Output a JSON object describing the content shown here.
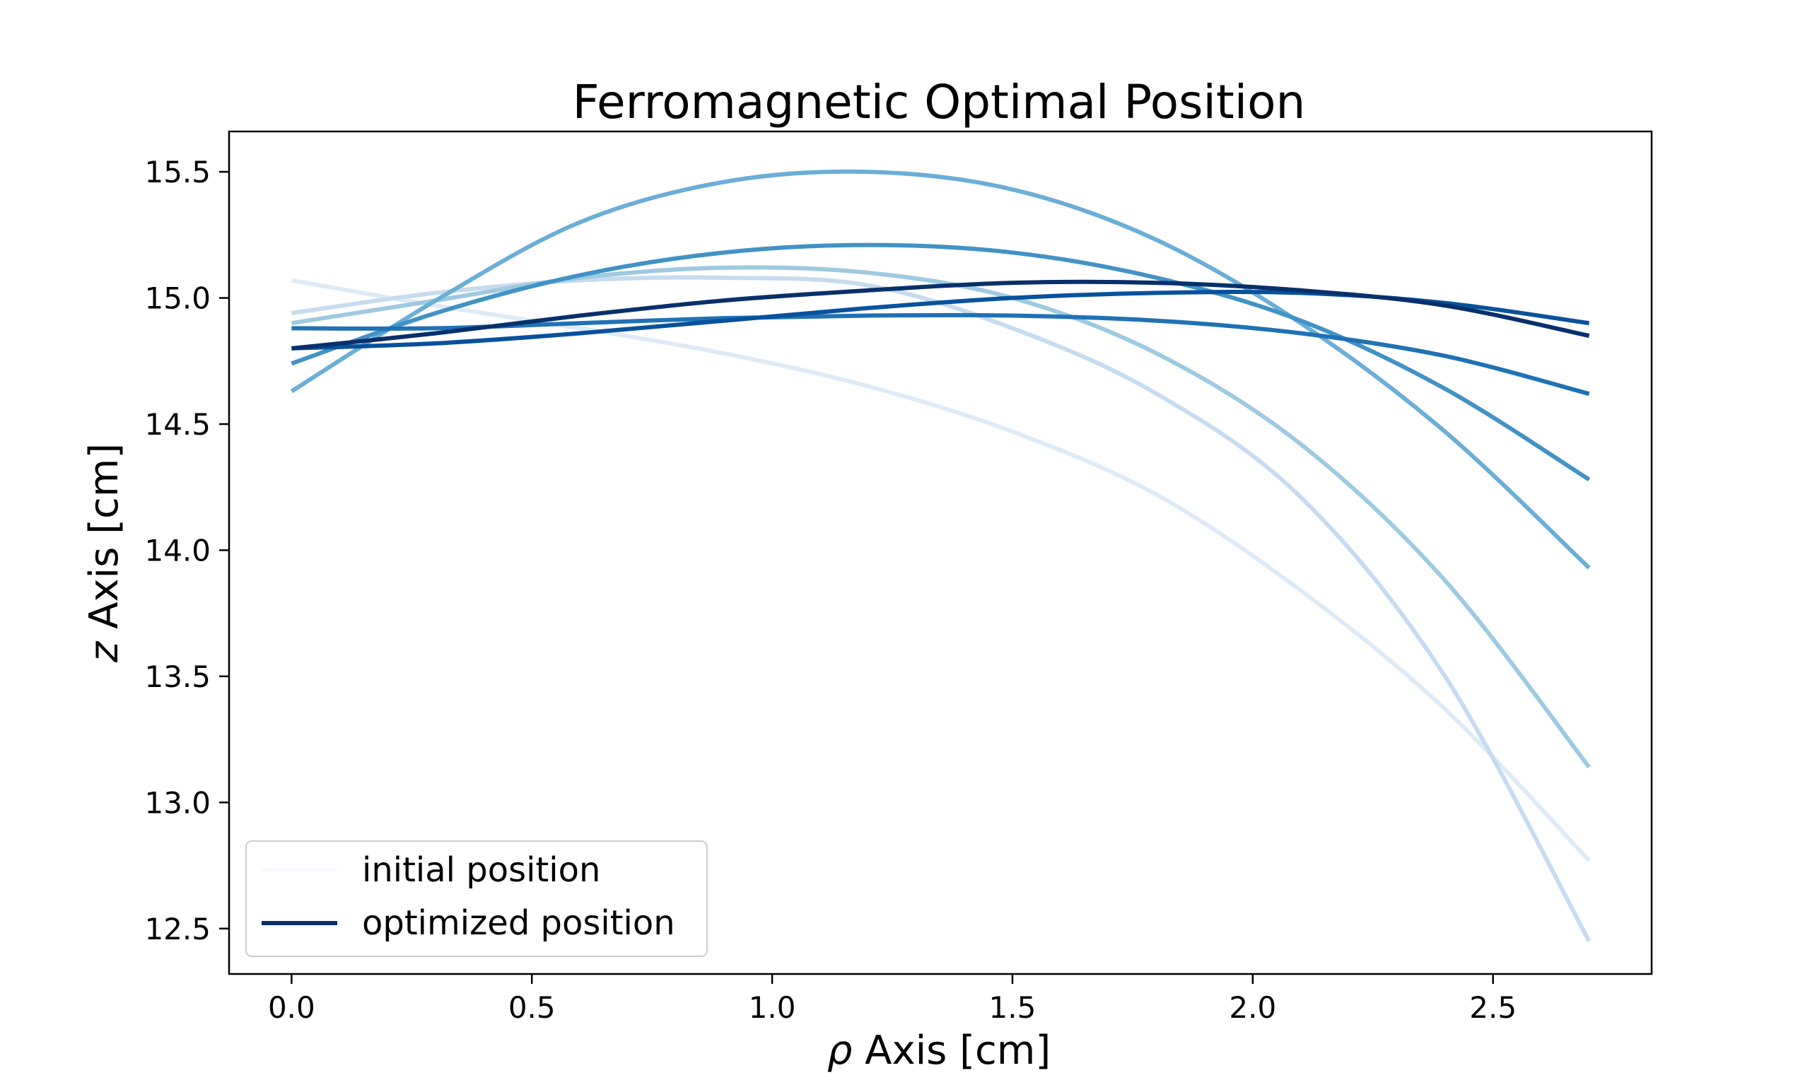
{
  "chart_data": {
    "type": "line",
    "title": "Ferromagnetic Optimal Position",
    "xlabel_symbol": "ρ",
    "xlabel_text": " Axis [cm]",
    "ylabel_symbol": "z",
    "ylabel_text": " Axis [cm]",
    "xlim": [
      -0.13,
      2.83
    ],
    "ylim": [
      12.32,
      15.66
    ],
    "xticks": [
      0.0,
      0.5,
      1.0,
      1.5,
      2.0,
      2.5
    ],
    "xtick_labels": [
      "0.0",
      "0.5",
      "1.0",
      "1.5",
      "2.0",
      "2.5"
    ],
    "yticks": [
      12.5,
      13.0,
      13.5,
      14.0,
      14.5,
      15.0,
      15.5
    ],
    "ytick_labels": [
      "12.5",
      "13.0",
      "13.5",
      "14.0",
      "14.5",
      "15.0",
      "15.5"
    ],
    "grid": false,
    "legend": {
      "placement": "lower-left",
      "entries": [
        {
          "label": "initial position",
          "color": "#f7fbff"
        },
        {
          "label": "optimized position",
          "color": "#08306b"
        }
      ]
    },
    "series": [
      {
        "color": "#deebf7",
        "x": [
          0.0,
          0.3,
          0.6,
          0.9,
          1.2,
          1.5,
          1.8,
          2.1,
          2.4,
          2.7
        ],
        "y": [
          15.07,
          14.97,
          14.88,
          14.78,
          14.65,
          14.47,
          14.22,
          13.84,
          13.37,
          12.77
        ]
      },
      {
        "color": "#c6dbef",
        "x": [
          0.0,
          0.3,
          0.6,
          0.9,
          1.2,
          1.5,
          1.8,
          2.1,
          2.4,
          2.7
        ],
        "y": [
          14.94,
          15.02,
          15.07,
          15.08,
          15.05,
          14.88,
          14.62,
          14.21,
          13.5,
          12.45
        ]
      },
      {
        "color": "#9ecae1",
        "x": [
          0.0,
          0.3,
          0.6,
          0.9,
          1.2,
          1.5,
          1.8,
          2.1,
          2.4,
          2.7
        ],
        "y": [
          14.9,
          14.99,
          15.08,
          15.12,
          15.1,
          15.0,
          14.78,
          14.42,
          13.88,
          13.14
        ]
      },
      {
        "color": "#6baed6",
        "x": [
          0.0,
          0.3,
          0.6,
          0.9,
          1.2,
          1.5,
          1.8,
          2.1,
          2.4,
          2.7
        ],
        "y": [
          14.63,
          14.99,
          15.3,
          15.46,
          15.5,
          15.43,
          15.23,
          14.9,
          14.47,
          13.93
        ]
      },
      {
        "color": "#4292c6",
        "x": [
          0.0,
          0.3,
          0.6,
          0.9,
          1.2,
          1.5,
          1.8,
          2.1,
          2.4,
          2.7
        ],
        "y": [
          14.74,
          14.94,
          15.09,
          15.18,
          15.21,
          15.18,
          15.08,
          14.91,
          14.64,
          14.28
        ]
      },
      {
        "color": "#2171b5",
        "x": [
          0.0,
          0.3,
          0.6,
          0.9,
          1.2,
          1.5,
          1.8,
          2.1,
          2.4,
          2.7
        ],
        "y": [
          14.88,
          14.88,
          14.9,
          14.92,
          14.93,
          14.93,
          14.91,
          14.86,
          14.77,
          14.62
        ]
      },
      {
        "color": "#08519c",
        "x": [
          0.0,
          0.3,
          0.6,
          0.9,
          1.2,
          1.5,
          1.8,
          2.1,
          2.4,
          2.7
        ],
        "y": [
          14.8,
          14.82,
          14.86,
          14.91,
          14.96,
          15.0,
          15.02,
          15.02,
          14.98,
          14.9
        ]
      },
      {
        "color": "#08306b",
        "x": [
          0.0,
          0.3,
          0.6,
          0.9,
          1.2,
          1.5,
          1.8,
          2.1,
          2.4,
          2.7
        ],
        "y": [
          14.8,
          14.86,
          14.93,
          14.99,
          15.03,
          15.06,
          15.06,
          15.03,
          14.97,
          14.85
        ]
      }
    ]
  }
}
